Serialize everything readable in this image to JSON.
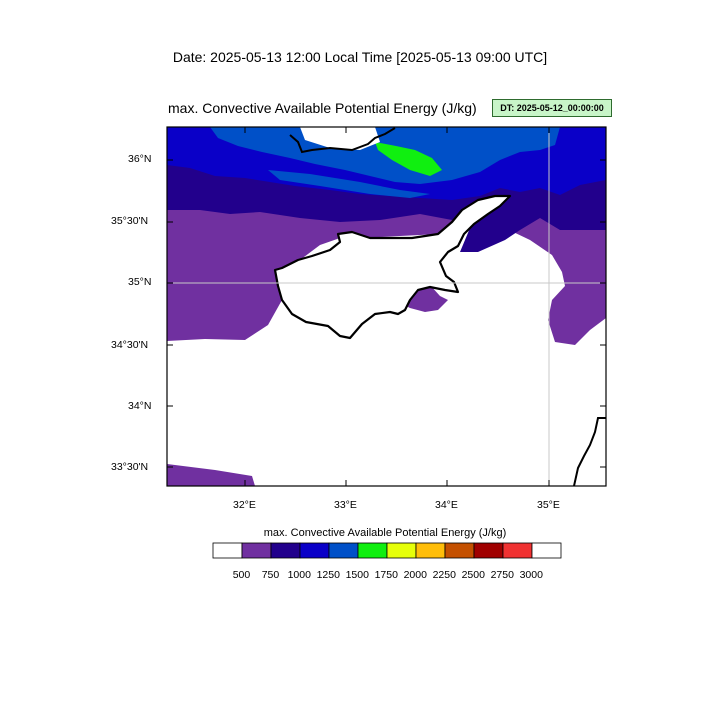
{
  "header": {
    "date_line": "Date: 2025-05-13  12:00 Local Time [2025-05-13  09:00 UTC]",
    "map_title": "max. Convective Available Potential Energy   (J/kg)",
    "dt_badge": "DT: 2025-05-12_00:00:00"
  },
  "axes": {
    "lat_labels": [
      "36°N",
      "35°30'N",
      "35°N",
      "34°30'N",
      "34°N",
      "33°30'N"
    ],
    "lon_labels": [
      "32°E",
      "33°E",
      "34°E",
      "35°E"
    ]
  },
  "colorbar": {
    "title": "max. Convective Available Potential Energy  (J/kg)",
    "labels": [
      "500",
      "750",
      "1000",
      "1250",
      "1500",
      "1750",
      "2000",
      "2250",
      "2500",
      "2750",
      "3000"
    ],
    "colors": [
      "#ffffff",
      "#7030a0",
      "#22008c",
      "#0a00c8",
      "#0050c8",
      "#10ef10",
      "#e6ff0a",
      "#ffbe0a",
      "#c45000",
      "#a00000",
      "#f03232",
      "#ffffff"
    ]
  },
  "palette": {
    "violet": "#7030a0",
    "indigo": "#22008c",
    "blue": "#0a00c8",
    "royal": "#0050c8",
    "green": "#10ef10",
    "coast": "#000000"
  }
}
